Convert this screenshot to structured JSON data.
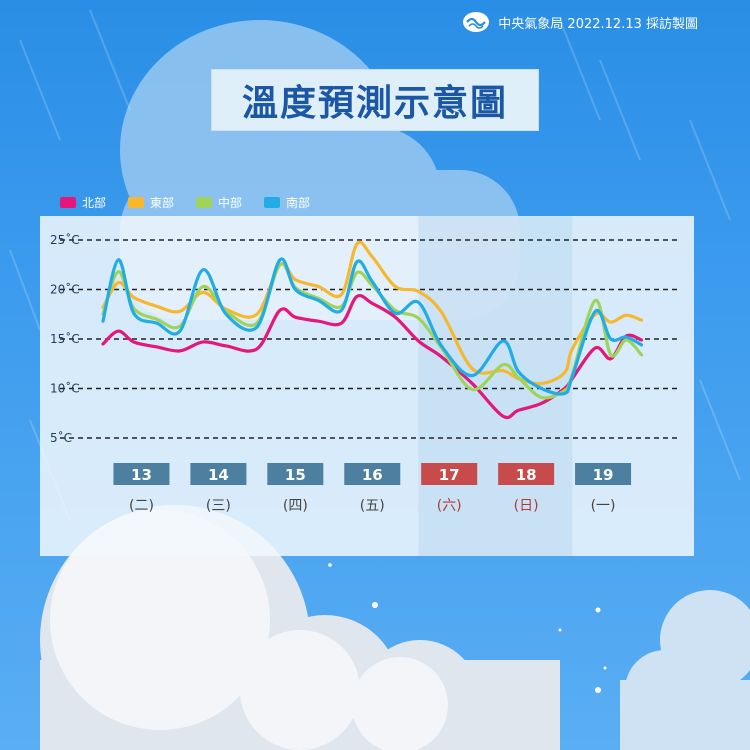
{
  "header": {
    "credit": "中央氣象局 2022.12.13  採訪製圖",
    "logo_icon": "cwb-logo-icon"
  },
  "title": "溫度預測示意圖",
  "chart_data": {
    "type": "line",
    "title": "溫度預測示意圖",
    "ylim": [
      2,
      28
    ],
    "yticks": [
      5,
      10,
      15,
      20,
      25
    ],
    "ytick_labels": [
      "5˚C",
      "10˚C",
      "15˚C",
      "20˚C",
      "25˚C"
    ],
    "x_range": [
      0,
      7.5
    ],
    "grid": "dashed horizontal",
    "legend_position": "top-left",
    "days": [
      {
        "date": "13",
        "weekday": "(二)",
        "x": 0.5,
        "weekend": false
      },
      {
        "date": "14",
        "weekday": "(三)",
        "x": 1.5,
        "weekend": false
      },
      {
        "date": "15",
        "weekday": "(四)",
        "x": 2.5,
        "weekend": false
      },
      {
        "date": "16",
        "weekday": "(五)",
        "x": 3.5,
        "weekend": false
      },
      {
        "date": "17",
        "weekday": "(六)",
        "x": 4.5,
        "weekend": true
      },
      {
        "date": "18",
        "weekday": "(日)",
        "x": 5.5,
        "weekend": true
      },
      {
        "date": "19",
        "weekday": "(一)",
        "x": 6.5,
        "weekend": false
      }
    ],
    "weekend_range": [
      4.1,
      6.1
    ],
    "series": [
      {
        "name": "北部",
        "color": "#e3187a",
        "x": [
          0.0,
          0.2,
          0.4,
          0.7,
          1.0,
          1.3,
          1.6,
          2.0,
          2.3,
          2.5,
          2.8,
          3.1,
          3.3,
          3.5,
          3.8,
          4.1,
          4.4,
          4.8,
          5.2,
          5.4,
          5.7,
          6.0,
          6.1,
          6.4,
          6.6,
          6.8,
          7.0
        ],
        "values": [
          14.5,
          15.8,
          14.7,
          14.2,
          13.8,
          14.7,
          14.3,
          14.0,
          17.9,
          17.2,
          16.8,
          16.6,
          19.3,
          18.6,
          17.2,
          14.8,
          13.2,
          10.5,
          7.2,
          7.8,
          8.5,
          10.0,
          11.0,
          14.1,
          13.0,
          15.3,
          14.9
        ]
      },
      {
        "name": "東部",
        "color": "#f5b82e",
        "x": [
          0.0,
          0.2,
          0.4,
          0.7,
          1.0,
          1.3,
          1.6,
          2.0,
          2.3,
          2.5,
          2.8,
          3.1,
          3.3,
          3.5,
          3.8,
          4.1,
          4.4,
          4.8,
          5.2,
          5.4,
          5.7,
          6.0,
          6.1,
          6.4,
          6.6,
          6.8,
          7.0
        ],
        "values": [
          18.2,
          20.7,
          19.2,
          18.3,
          17.8,
          19.7,
          18.0,
          17.5,
          22.5,
          21.0,
          20.3,
          19.5,
          24.6,
          23.3,
          20.3,
          19.8,
          17.7,
          12.0,
          11.8,
          11.0,
          10.5,
          11.6,
          14.0,
          17.5,
          16.7,
          17.4,
          16.9
        ]
      },
      {
        "name": "中部",
        "color": "#9fd45a",
        "x": [
          0.0,
          0.2,
          0.4,
          0.7,
          1.0,
          1.3,
          1.6,
          2.0,
          2.3,
          2.5,
          2.8,
          3.1,
          3.3,
          3.5,
          3.8,
          4.1,
          4.4,
          4.8,
          5.2,
          5.4,
          5.7,
          6.0,
          6.1,
          6.4,
          6.6,
          6.8,
          7.0
        ],
        "values": [
          17.5,
          21.8,
          18.1,
          17.0,
          16.3,
          20.3,
          17.8,
          16.6,
          22.5,
          20.2,
          19.1,
          18.3,
          21.7,
          20.4,
          17.9,
          17.1,
          14.1,
          9.9,
          12.4,
          11.1,
          9.1,
          9.8,
          11.4,
          18.9,
          13.4,
          14.9,
          13.4
        ]
      },
      {
        "name": "南部",
        "color": "#22ace6",
        "x": [
          0.0,
          0.2,
          0.4,
          0.7,
          1.0,
          1.3,
          1.6,
          2.0,
          2.3,
          2.5,
          2.8,
          3.1,
          3.3,
          3.5,
          3.8,
          4.1,
          4.4,
          4.8,
          5.2,
          5.4,
          5.7,
          6.0,
          6.1,
          6.4,
          6.6,
          6.8,
          7.0
        ],
        "values": [
          16.8,
          23.0,
          17.6,
          16.6,
          15.8,
          22.0,
          17.5,
          16.2,
          23.0,
          20.0,
          18.9,
          17.9,
          22.8,
          20.8,
          17.6,
          18.7,
          14.3,
          11.3,
          14.8,
          11.7,
          10.0,
          9.5,
          11.2,
          17.8,
          15.0,
          15.2,
          14.4
        ]
      }
    ]
  }
}
